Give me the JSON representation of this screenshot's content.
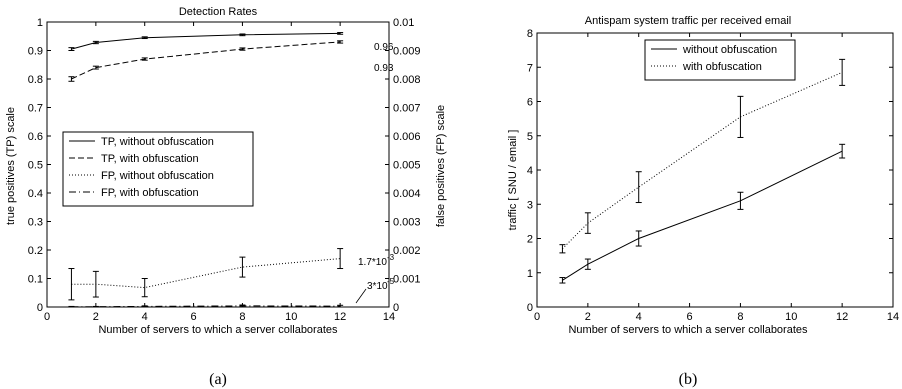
{
  "captions": [
    "(a)",
    "(b)"
  ],
  "chart_data": [
    {
      "type": "line",
      "title": "Detection Rates",
      "xlabel": "Number of servers to which a server collaborates",
      "ylabel": "true positives (TP) scale",
      "y2label": "false positives (FP) scale",
      "xlim": [
        0,
        14
      ],
      "ylim": [
        0,
        1
      ],
      "y2lim": [
        0,
        0.01
      ],
      "xticks": [
        "0",
        "2",
        "4",
        "6",
        "8",
        "10",
        "12",
        "14"
      ],
      "yticks": [
        "0",
        "0.1",
        "0.2",
        "0.3",
        "0.4",
        "0.5",
        "0.6",
        "0.7",
        "0.8",
        "0.9",
        "1"
      ],
      "y2ticks": [
        "0",
        "0.001",
        "0.002",
        "0.003",
        "0.004",
        "0.005",
        "0.006",
        "0.007",
        "0.008",
        "0.009",
        "0.01"
      ],
      "x": [
        1,
        2,
        4,
        8,
        12
      ],
      "legend_position": "center-left",
      "series": [
        {
          "name": "TP, without obfuscation",
          "axis": "left",
          "style": "solid",
          "values": [
            0.905,
            0.928,
            0.945,
            0.955,
            0.96
          ],
          "err": [
            0.005,
            0.004,
            0.003,
            0.003,
            0.003
          ]
        },
        {
          "name": "TP, with obfuscation",
          "axis": "left",
          "style": "dashed",
          "values": [
            0.8,
            0.84,
            0.87,
            0.905,
            0.93
          ],
          "err": [
            0.008,
            0.005,
            0.004,
            0.004,
            0.004
          ]
        },
        {
          "name": "FP, without obfuscation",
          "axis": "right",
          "style": "dotted",
          "values": [
            0.0008,
            0.0008,
            0.00068,
            0.0014,
            0.0017
          ],
          "err": [
            0.00055,
            0.00045,
            0.00032,
            0.00035,
            0.00035
          ]
        },
        {
          "name": "FP, with obfuscation",
          "axis": "right",
          "style": "dashdot",
          "values": [
            1e-05,
            1e-05,
            2e-05,
            4e-05,
            3e-05
          ],
          "err": [
            1e-05,
            1e-05,
            2e-05,
            3e-05,
            3e-05
          ]
        }
      ],
      "annotations": [
        "0.96",
        "0.93",
        "1.7*10",
        "-3",
        "3*10",
        "-5"
      ]
    },
    {
      "type": "line",
      "title": "Antispam system traffic per received email",
      "xlabel": "Number of servers to which a server collaborates",
      "ylabel": "traffic [ SNU / email ]",
      "xlim": [
        0,
        14
      ],
      "ylim": [
        0,
        8
      ],
      "xticks": [
        "0",
        "2",
        "4",
        "6",
        "8",
        "10",
        "12",
        "14"
      ],
      "yticks": [
        "0",
        "1",
        "2",
        "3",
        "4",
        "5",
        "6",
        "7",
        "8"
      ],
      "x": [
        1,
        2,
        4,
        8,
        12
      ],
      "legend_position": "top-center",
      "series": [
        {
          "name": "without obfuscation",
          "style": "solid",
          "values": [
            0.78,
            1.25,
            2.0,
            3.1,
            4.55
          ],
          "err": [
            0.08,
            0.15,
            0.22,
            0.25,
            0.2
          ]
        },
        {
          "name": "with obfuscation",
          "style": "dotted",
          "values": [
            1.7,
            2.45,
            3.5,
            5.55,
            6.85
          ],
          "err": [
            0.12,
            0.3,
            0.45,
            0.6,
            0.38
          ]
        }
      ]
    }
  ]
}
